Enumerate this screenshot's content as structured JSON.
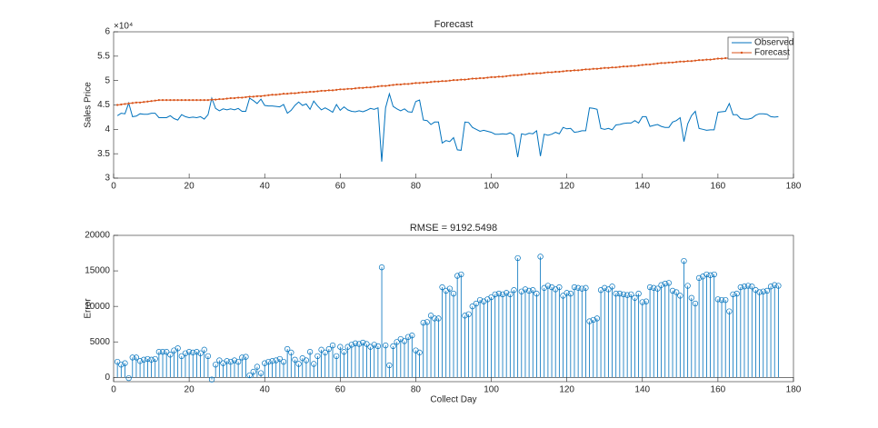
{
  "chart_data": [
    {
      "type": "line",
      "title": "Forecast",
      "y_label": "Sales Price",
      "y_exponent": "×10⁴",
      "legend": "northeast",
      "x": [
        1,
        2,
        3,
        4,
        5,
        6,
        7,
        8,
        9,
        10,
        11,
        12,
        13,
        14,
        15,
        16,
        17,
        18,
        19,
        20,
        21,
        22,
        23,
        24,
        25,
        26,
        27,
        28,
        29,
        30,
        31,
        32,
        33,
        34,
        35,
        36,
        37,
        38,
        39,
        40,
        41,
        42,
        43,
        44,
        45,
        46,
        47,
        48,
        49,
        50,
        51,
        52,
        53,
        54,
        55,
        56,
        57,
        58,
        59,
        60,
        61,
        62,
        63,
        64,
        65,
        66,
        67,
        68,
        69,
        70,
        71,
        72,
        73,
        74,
        75,
        76,
        77,
        78,
        79,
        80,
        81,
        82,
        83,
        84,
        85,
        86,
        87,
        88,
        89,
        90,
        91,
        92,
        93,
        94,
        95,
        96,
        97,
        98,
        99,
        100,
        101,
        102,
        103,
        104,
        105,
        106,
        107,
        108,
        109,
        110,
        111,
        112,
        113,
        114,
        115,
        116,
        117,
        118,
        119,
        120,
        121,
        122,
        123,
        124,
        125,
        126,
        127,
        128,
        129,
        130,
        131,
        132,
        133,
        134,
        135,
        136,
        137,
        138,
        139,
        140,
        141,
        142,
        143,
        144,
        145,
        146,
        147,
        148,
        149,
        150,
        151,
        152,
        153,
        154,
        155,
        156,
        157,
        158,
        159,
        160,
        161,
        162,
        163,
        164,
        165,
        166,
        167,
        168,
        169,
        170,
        171,
        172,
        173,
        174,
        175,
        176
      ],
      "series": [
        {
          "name": "Observed",
          "color": "#0072BD",
          "values": [
            42800,
            43300,
            43200,
            45400,
            42600,
            42700,
            43200,
            43100,
            43100,
            43300,
            43300,
            42400,
            42400,
            42400,
            42800,
            42200,
            41900,
            43000,
            42600,
            42400,
            42500,
            42400,
            42600,
            42100,
            43000,
            46400,
            44300,
            43800,
            44200,
            44000,
            44200,
            44000,
            44300,
            43700,
            43700,
            46400,
            45900,
            45300,
            46200,
            44900,
            44800,
            44800,
            44700,
            44600,
            45100,
            43300,
            43900,
            44900,
            45600,
            44900,
            45200,
            44100,
            45800,
            44800,
            44000,
            44400,
            44000,
            43500,
            45100,
            43900,
            44600,
            44000,
            43700,
            43600,
            43800,
            43600,
            43900,
            44300,
            44100,
            44400,
            33400,
            44400,
            47300,
            44700,
            44200,
            43800,
            44200,
            43600,
            43500,
            45700,
            46000,
            41900,
            41800,
            41000,
            41500,
            41500,
            37200,
            37700,
            37500,
            38300,
            35800,
            35700,
            41500,
            41400,
            40400,
            40000,
            39600,
            39800,
            39600,
            39400,
            39000,
            39000,
            39100,
            39000,
            39300,
            38800,
            34300,
            39100,
            38900,
            39200,
            39100,
            39700,
            34500,
            39000,
            38800,
            39000,
            39400,
            39100,
            40400,
            40100,
            40200,
            39400,
            39500,
            39700,
            39700,
            44400,
            44300,
            44100,
            40200,
            40000,
            40200,
            39900,
            40900,
            41000,
            41200,
            41300,
            41300,
            41800,
            41300,
            42600,
            42600,
            40600,
            40800,
            41000,
            40600,
            40400,
            40400,
            41500,
            41800,
            42400,
            37500,
            41100,
            42800,
            43700,
            40200,
            40000,
            39800,
            39900,
            39900,
            43500,
            43600,
            43700,
            45300,
            43000,
            43000,
            42200,
            42100,
            42100,
            42300,
            42900,
            43200,
            43200,
            43100,
            42600,
            42500,
            42600
          ]
        },
        {
          "name": "Forecast",
          "color": "#D95319",
          "values": [
            45000,
            45100,
            45200,
            45300,
            45400,
            45500,
            45500,
            45600,
            45700,
            45800,
            45900,
            46000,
            46000,
            46000,
            46000,
            46000,
            46000,
            46000,
            46000,
            46000,
            46000,
            46000,
            46000,
            46000,
            46000,
            46100,
            46100,
            46200,
            46200,
            46300,
            46400,
            46400,
            46500,
            46500,
            46600,
            46700,
            46700,
            46800,
            46800,
            46900,
            47000,
            47100,
            47100,
            47200,
            47300,
            47300,
            47400,
            47400,
            47500,
            47600,
            47600,
            47700,
            47700,
            47800,
            47900,
            47900,
            48000,
            48000,
            48100,
            48200,
            48200,
            48300,
            48300,
            48400,
            48500,
            48500,
            48600,
            48600,
            48700,
            48800,
            48900,
            48900,
            49000,
            49100,
            49200,
            49200,
            49300,
            49300,
            49400,
            49500,
            49500,
            49600,
            49600,
            49700,
            49800,
            49800,
            49900,
            49900,
            50000,
            50100,
            50100,
            50200,
            50200,
            50300,
            50400,
            50400,
            50500,
            50500,
            50600,
            50700,
            50700,
            50800,
            50800,
            50900,
            51000,
            51100,
            51100,
            51200,
            51300,
            51400,
            51400,
            51500,
            51500,
            51600,
            51700,
            51700,
            51800,
            51800,
            51900,
            52000,
            52000,
            52100,
            52100,
            52200,
            52300,
            52300,
            52400,
            52400,
            52500,
            52600,
            52600,
            52700,
            52700,
            52800,
            52900,
            52900,
            53000,
            53000,
            53100,
            53200,
            53300,
            53300,
            53400,
            53500,
            53600,
            53600,
            53700,
            53700,
            53800,
            53900,
            53900,
            54000,
            54000,
            54100,
            54200,
            54200,
            54300,
            54300,
            54400,
            54500,
            54500,
            54600,
            54600,
            54700,
            54800,
            54900,
            54900,
            55000,
            55100,
            55200,
            55200,
            55300,
            55300,
            55400,
            55500,
            55500
          ]
        }
      ],
      "xlim": [
        0,
        180
      ],
      "xticks": [
        0,
        20,
        40,
        60,
        80,
        100,
        120,
        140,
        160,
        180
      ],
      "ylim": [
        30000,
        60000
      ],
      "yticks": [
        {
          "value": 30000,
          "label": "3"
        },
        {
          "value": 35000,
          "label": "3.5"
        },
        {
          "value": 40000,
          "label": "4"
        },
        {
          "value": 45000,
          "label": "4.5"
        },
        {
          "value": 50000,
          "label": "5"
        },
        {
          "value": 55000,
          "label": "5.5"
        },
        {
          "value": 60000,
          "label": "6"
        }
      ]
    },
    {
      "type": "stem",
      "title": "RMSE = 9192.5498",
      "y_label": "Error",
      "x_label": "Collect Day",
      "x": [
        1,
        2,
        3,
        4,
        5,
        6,
        7,
        8,
        9,
        10,
        11,
        12,
        13,
        14,
        15,
        16,
        17,
        18,
        19,
        20,
        21,
        22,
        23,
        24,
        25,
        26,
        27,
        28,
        29,
        30,
        31,
        32,
        33,
        34,
        35,
        36,
        37,
        38,
        39,
        40,
        41,
        42,
        43,
        44,
        45,
        46,
        47,
        48,
        49,
        50,
        51,
        52,
        53,
        54,
        55,
        56,
        57,
        58,
        59,
        60,
        61,
        62,
        63,
        64,
        65,
        66,
        67,
        68,
        69,
        70,
        71,
        72,
        73,
        74,
        75,
        76,
        77,
        78,
        79,
        80,
        81,
        82,
        83,
        84,
        85,
        86,
        87,
        88,
        89,
        90,
        91,
        92,
        93,
        94,
        95,
        96,
        97,
        98,
        99,
        100,
        101,
        102,
        103,
        104,
        105,
        106,
        107,
        108,
        109,
        110,
        111,
        112,
        113,
        114,
        115,
        116,
        117,
        118,
        119,
        120,
        121,
        122,
        123,
        124,
        125,
        126,
        127,
        128,
        129,
        130,
        131,
        132,
        133,
        134,
        135,
        136,
        137,
        138,
        139,
        140,
        141,
        142,
        143,
        144,
        145,
        146,
        147,
        148,
        149,
        150,
        151,
        152,
        153,
        154,
        155,
        156,
        157,
        158,
        159,
        160,
        161,
        162,
        163,
        164,
        165,
        166,
        167,
        168,
        169,
        170,
        171,
        172,
        173,
        174,
        175,
        176
      ],
      "color": "#0072BD",
      "values": [
        2200,
        1800,
        2000,
        -100,
        2800,
        2800,
        2300,
        2500,
        2600,
        2500,
        2600,
        3600,
        3600,
        3600,
        3200,
        3800,
        4100,
        3000,
        3400,
        3600,
        3500,
        3600,
        3400,
        3900,
        3000,
        -300,
        1800,
        2400,
        2000,
        2300,
        2200,
        2400,
        2200,
        2800,
        2900,
        300,
        800,
        1500,
        600,
        2000,
        2200,
        2300,
        2400,
        2600,
        2200,
        4000,
        3500,
        2500,
        1900,
        2700,
        2400,
        3600,
        1900,
        3000,
        3900,
        3500,
        4000,
        4500,
        3000,
        4300,
        3600,
        4300,
        4600,
        4800,
        4700,
        4900,
        4700,
        4300,
        4600,
        4400,
        15500,
        4500,
        1700,
        4400,
        5000,
        5400,
        5100,
        5700,
        5900,
        3800,
        3500,
        7700,
        7800,
        8700,
        8300,
        8300,
        12700,
        12200,
        12500,
        11800,
        14300,
        14500,
        8700,
        8900,
        10000,
        10400,
        10900,
        10700,
        11000,
        11300,
        11700,
        11800,
        11700,
        11900,
        11700,
        12300,
        16800,
        12100,
        12400,
        12200,
        12300,
        11800,
        17000,
        12600,
        12900,
        12700,
        12400,
        12700,
        11500,
        11900,
        11800,
        12700,
        12600,
        12500,
        12600,
        7900,
        8100,
        8300,
        12300,
        12600,
        12400,
        12800,
        11800,
        11800,
        11700,
        11600,
        11700,
        11200,
        11800,
        10600,
        10700,
        12700,
        12600,
        12500,
        13000,
        13200,
        13300,
        12200,
        12000,
        11500,
        16400,
        12900,
        11200,
        10400,
        14000,
        14200,
        14500,
        14400,
        14500,
        11000,
        10900,
        10900,
        9300,
        11700,
        11800,
        12700,
        12800,
        12900,
        12800,
        12300,
        12000,
        12100,
        12200,
        12800,
        13000,
        12900
      ],
      "xlim": [
        0,
        180
      ],
      "xticks": [
        0,
        20,
        40,
        60,
        80,
        100,
        120,
        140,
        160,
        180
      ],
      "ylim": [
        -600,
        20000
      ],
      "yticks": [
        0,
        5000,
        10000,
        15000,
        20000
      ]
    }
  ]
}
